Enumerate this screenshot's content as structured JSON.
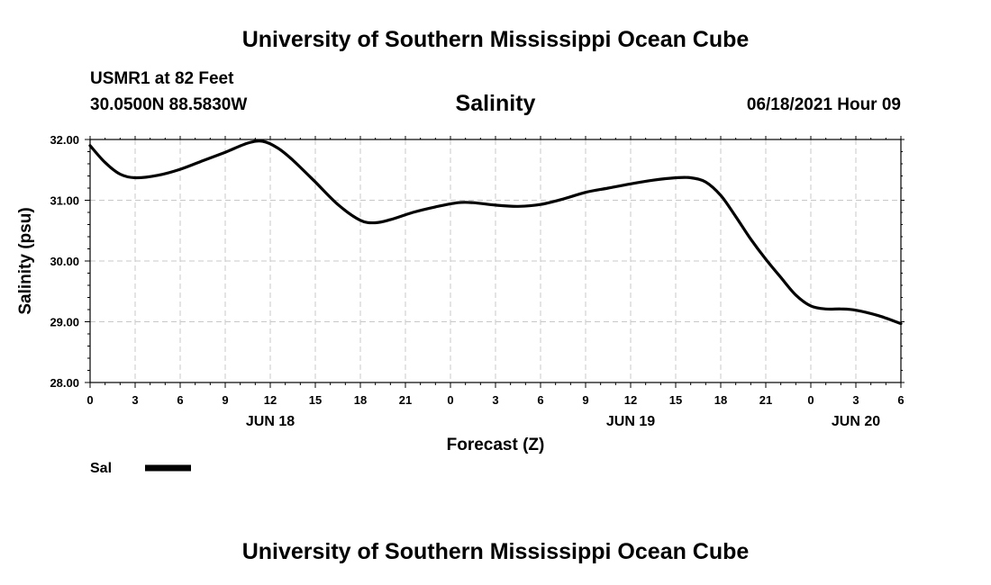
{
  "header": {
    "title": "University of Southern Mississippi Ocean Cube",
    "station": "USMR1 at 82 Feet",
    "coords": "30.0500N  88.5830W",
    "variable": "Salinity",
    "datetime": "06/18/2021 Hour 09"
  },
  "footer": {
    "title": "University of Southern Mississippi Ocean Cube"
  },
  "chart_data": {
    "type": "line",
    "ylabel": "Salinity (psu)",
    "xlabel": "Forecast (Z)",
    "ylim": [
      28,
      32
    ],
    "xlim": [
      0,
      54
    ],
    "y_ticks": [
      "32.00",
      "31.00",
      "30.00",
      "29.00",
      "28.00"
    ],
    "y_tick_values": [
      32,
      31,
      30,
      29,
      28
    ],
    "x_tick_labels": [
      "0",
      "3",
      "6",
      "9",
      "12",
      "15",
      "18",
      "21",
      "0",
      "3",
      "6",
      "9",
      "12",
      "15",
      "18",
      "21",
      "0",
      "3",
      "6"
    ],
    "date_labels": [
      {
        "label": "JUN 18",
        "hour": 12
      },
      {
        "label": "JUN 19",
        "hour": 36
      },
      {
        "label": "JUN 20",
        "hour": 51
      }
    ],
    "grid": true,
    "legend": "bottom-left",
    "series": [
      {
        "name": "Sal",
        "color": "#000000",
        "x": [
          0,
          1,
          2,
          3,
          4.5,
          6,
          7.5,
          9,
          10.5,
          11.5,
          12.5,
          13.5,
          15,
          16.5,
          18,
          19,
          20,
          21.5,
          23,
          24.5,
          25.5,
          27,
          28.5,
          30,
          31.5,
          33,
          34.5,
          36,
          37.5,
          39,
          40,
          41,
          42,
          43,
          44,
          45,
          46,
          47,
          48,
          49,
          50,
          51,
          52.5,
          54
        ],
        "values": [
          31.9,
          31.62,
          31.43,
          31.37,
          31.41,
          31.51,
          31.65,
          31.79,
          31.94,
          31.97,
          31.86,
          31.66,
          31.3,
          30.93,
          30.67,
          30.63,
          30.68,
          30.8,
          30.89,
          30.96,
          30.96,
          30.92,
          30.9,
          30.93,
          31.02,
          31.13,
          31.2,
          31.27,
          31.33,
          31.37,
          31.37,
          31.3,
          31.08,
          30.73,
          30.36,
          30.03,
          29.73,
          29.44,
          29.26,
          29.21,
          29.21,
          29.19,
          29.1,
          28.97
        ]
      }
    ]
  }
}
